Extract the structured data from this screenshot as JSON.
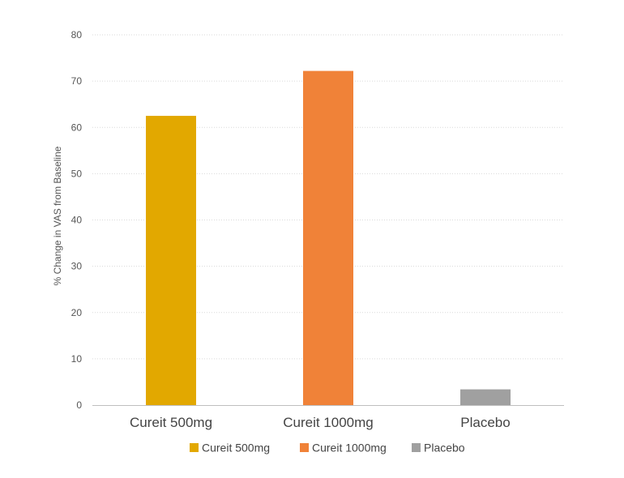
{
  "chart_data": {
    "type": "bar",
    "title": "",
    "xlabel": "",
    "ylabel": "% Change in VAS from Baseline",
    "ylim": [
      0,
      80
    ],
    "yticks": [
      0,
      10,
      20,
      30,
      40,
      50,
      60,
      70,
      80
    ],
    "grid": true,
    "legend_position": "bottom",
    "categories": [
      "Cureit 500mg",
      "Cureit 1000mg",
      "Placebo"
    ],
    "values": [
      62.5,
      72.2,
      3.4
    ],
    "colors": [
      "#E2A800",
      "#F08238",
      "#A0A0A0"
    ],
    "legend": [
      {
        "label": "Cureit 500mg",
        "color": "#E2A800"
      },
      {
        "label": "Cureit 1000mg",
        "color": "#F08238"
      },
      {
        "label": "Placebo",
        "color": "#A0A0A0"
      }
    ]
  }
}
